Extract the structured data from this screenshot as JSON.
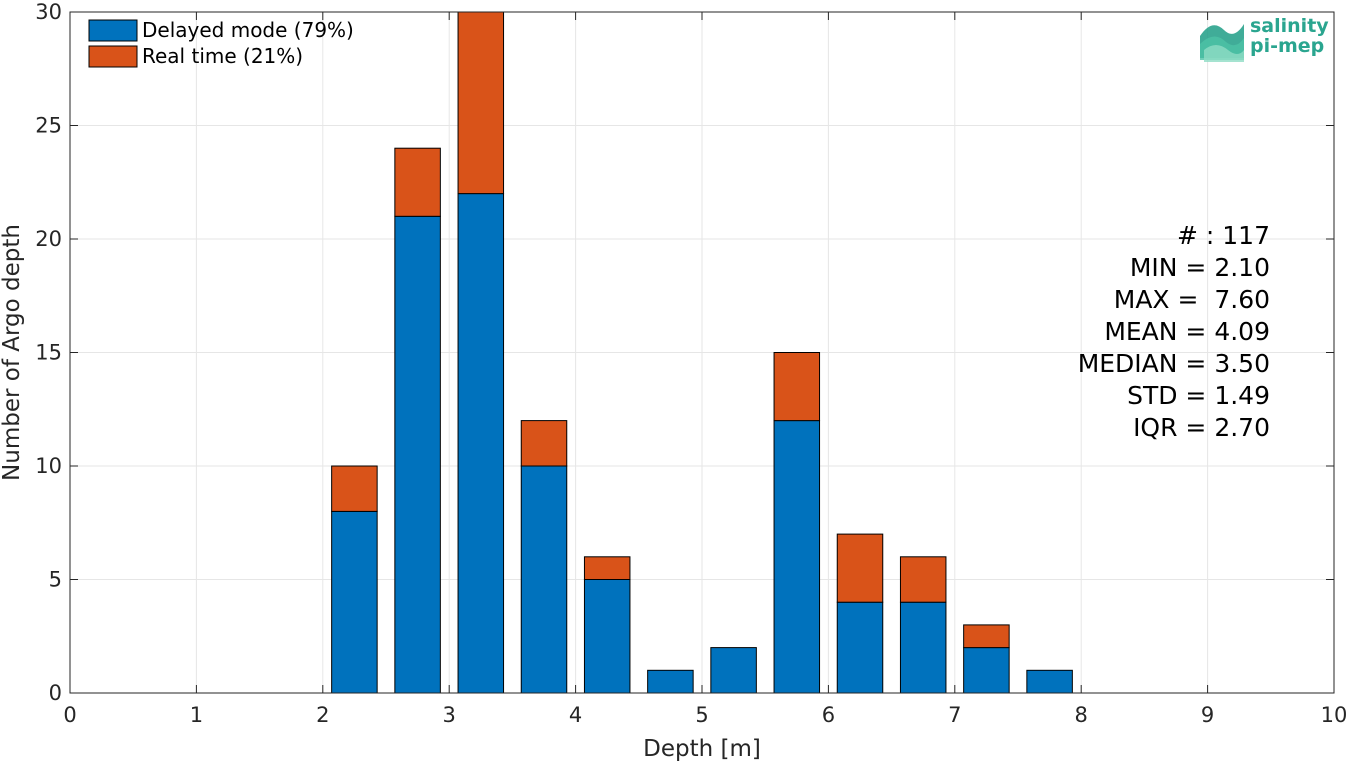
{
  "chart_data": {
    "type": "bar",
    "stacked": true,
    "xlabel": "Depth [m]",
    "ylabel": "Number of Argo depth",
    "xlim": [
      0,
      10
    ],
    "ylim": [
      0,
      30
    ],
    "xticks": [
      0,
      1,
      2,
      3,
      4,
      5,
      6,
      7,
      8,
      9,
      10
    ],
    "yticks": [
      0,
      5,
      10,
      15,
      20,
      25,
      30
    ],
    "grid": true,
    "legend_position": "top-left",
    "x": [
      2.25,
      2.75,
      3.25,
      3.75,
      4.25,
      4.75,
      5.25,
      5.75,
      6.25,
      6.75,
      7.25,
      7.75
    ],
    "series": [
      {
        "name": "Delayed mode (79%)",
        "color": "#0072bd",
        "values": [
          8,
          21,
          22,
          10,
          5,
          1,
          2,
          12,
          4,
          4,
          2,
          1
        ]
      },
      {
        "name": "Real time (21%)",
        "color": "#d95319",
        "values": [
          2,
          3,
          8,
          2,
          1,
          0,
          0,
          3,
          3,
          2,
          1,
          0
        ]
      }
    ],
    "annotation": [
      "# : 117",
      "MIN = 2.10",
      "MAX =  7.60",
      "MEAN = 4.09",
      "MEDIAN = 3.50",
      "STD = 1.49",
      "IQR = 2.70"
    ]
  },
  "logo": {
    "line1": "salinity",
    "line2": "pi-mep",
    "color": "#2aa58f"
  }
}
